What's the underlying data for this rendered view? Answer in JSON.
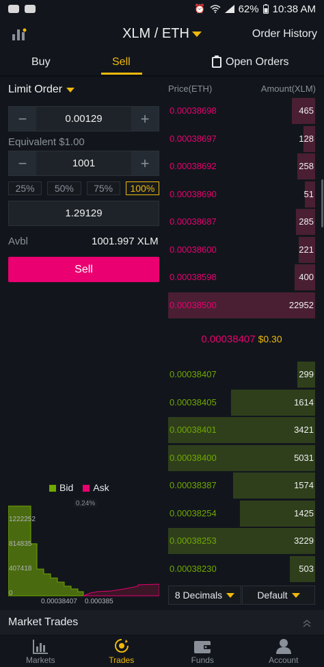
{
  "status_bar": {
    "battery": "62%",
    "time": "10:38 AM"
  },
  "header": {
    "pair": "XLM / ETH",
    "order_history": "Order History"
  },
  "tabs": {
    "buy": "Buy",
    "sell": "Sell",
    "open_orders": "Open Orders",
    "active": "Sell"
  },
  "form": {
    "order_type": "Limit Order",
    "price": "0.00129",
    "equivalent": "Equivalent $1.00",
    "amount": "1001",
    "percentages": [
      "25%",
      "50%",
      "75%",
      "100%"
    ],
    "selected_percentage": "100%",
    "total": "1.29129",
    "avbl_label": "Avbl",
    "avbl_value": "1001.997 XLM",
    "sell_button": "Sell"
  },
  "depth_chart": {
    "legend": {
      "bid": "Bid",
      "ask": "Ask"
    },
    "spread_label": "0.24%",
    "y_ticks": [
      "1222252",
      "814835",
      "407418",
      "0"
    ],
    "x_ticks": [
      "0.00038407",
      "0.000385"
    ],
    "colors": {
      "bid": "#70a800",
      "ask": "#ea0070"
    }
  },
  "order_book": {
    "price_header": "Price(ETH)",
    "amount_header": "Amount(XLM)",
    "asks": [
      {
        "price": "0.00038698",
        "amount": "465",
        "depth": 0.16
      },
      {
        "price": "0.00038697",
        "amount": "128",
        "depth": 0.08
      },
      {
        "price": "0.00038692",
        "amount": "258",
        "depth": 0.12
      },
      {
        "price": "0.00038690",
        "amount": "51",
        "depth": 0.07
      },
      {
        "price": "0.00038687",
        "amount": "285",
        "depth": 0.13
      },
      {
        "price": "0.00038600",
        "amount": "221",
        "depth": 0.11
      },
      {
        "price": "0.00038598",
        "amount": "400",
        "depth": 0.14
      },
      {
        "price": "0.00038500",
        "amount": "22952",
        "depth": 1.0
      }
    ],
    "last_price": "0.00038407",
    "last_price_usd": "$0.30",
    "bids": [
      {
        "price": "0.00038407",
        "amount": "299",
        "depth": 0.12
      },
      {
        "price": "0.00038405",
        "amount": "1614",
        "depth": 0.57
      },
      {
        "price": "0.00038401",
        "amount": "3421",
        "depth": 1.0
      },
      {
        "price": "0.00038400",
        "amount": "5031",
        "depth": 1.0
      },
      {
        "price": "0.00038387",
        "amount": "1574",
        "depth": 0.56
      },
      {
        "price": "0.00038254",
        "amount": "1425",
        "depth": 0.51
      },
      {
        "price": "0.00038253",
        "amount": "3229",
        "depth": 1.0
      },
      {
        "price": "0.00038230",
        "amount": "503",
        "depth": 0.17
      }
    ],
    "decimals_button": "8 Decimals",
    "default_button": "Default"
  },
  "market_trades": {
    "label": "Market Trades"
  },
  "bottom_nav": [
    {
      "label": "Markets",
      "icon": "markets-icon"
    },
    {
      "label": "Trades",
      "icon": "trades-icon"
    },
    {
      "label": "Funds",
      "icon": "wallet-icon"
    },
    {
      "label": "Account",
      "icon": "account-icon"
    }
  ],
  "bottom_nav_active": "Trades",
  "colors": {
    "accent": "#f0b90b",
    "sell": "#ea0070",
    "buy": "#70a800",
    "background": "#12161c"
  }
}
